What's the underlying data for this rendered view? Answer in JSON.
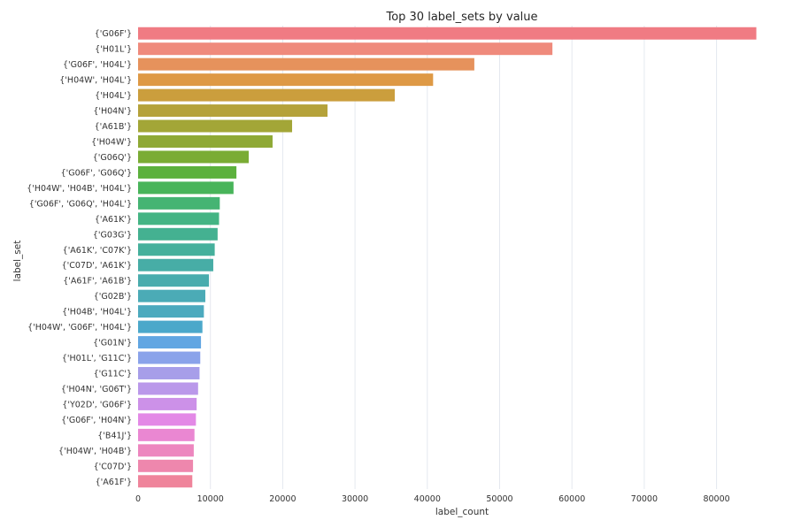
{
  "chart_data": {
    "type": "bar",
    "orientation": "horizontal",
    "title": "Top 30 label_sets by value",
    "xlabel": "label_count",
    "ylabel": "label_set",
    "xlim": [
      0,
      90000
    ],
    "xticks": [
      0,
      10000,
      20000,
      30000,
      40000,
      50000,
      60000,
      70000,
      80000
    ],
    "grid": "vertical",
    "categories": [
      "{'G06F'}",
      "{'H01L'}",
      "{'G06F', 'H04L'}",
      "{'H04W', 'H04L'}",
      "{'H04L'}",
      "{'H04N'}",
      "{'A61B'}",
      "{'H04W'}",
      "{'G06Q'}",
      "{'G06F', 'G06Q'}",
      "{'H04W', 'H04B', 'H04L'}",
      "{'G06F', 'G06Q', 'H04L'}",
      "{'A61K'}",
      "{'G03G'}",
      "{'A61K', 'C07K'}",
      "{'C07D', 'A61K'}",
      "{'A61F', 'A61B'}",
      "{'G02B'}",
      "{'H04B', 'H04L'}",
      "{'H04W', 'G06F', 'H04L'}",
      "{'G01N'}",
      "{'H01L', 'G11C'}",
      "{'G11C'}",
      "{'H04N', 'G06T'}",
      "{'Y02D', 'G06F'}",
      "{'G06F', 'H04N'}",
      "{'B41J'}",
      "{'H04W', 'H04B'}",
      "{'C07D'}",
      "{'A61F'}"
    ],
    "values": [
      85500,
      57300,
      46500,
      40800,
      35500,
      26200,
      21300,
      18600,
      15300,
      13600,
      13200,
      11300,
      11200,
      11000,
      10600,
      10400,
      9800,
      9300,
      9100,
      8900,
      8700,
      8600,
      8500,
      8300,
      8100,
      8000,
      7800,
      7700,
      7600,
      7500
    ],
    "colors": [
      "#f07b83",
      "#ef8a7c",
      "#e6925c",
      "#de9945",
      "#cb9e3d",
      "#b5a23a",
      "#a3a637",
      "#8fa935",
      "#7aac34",
      "#5cb13d",
      "#48b45a",
      "#45b473",
      "#44b484",
      "#44b191",
      "#45b09c",
      "#47ada6",
      "#49acad",
      "#4babb6",
      "#4caabe",
      "#4ba8ca",
      "#61a6e2",
      "#8aa3ea",
      "#a79ee9",
      "#ba98ea",
      "#cc91e8",
      "#e389e6",
      "#ea87d2",
      "#ed86bf",
      "#ee87ad",
      "#ef849b"
    ]
  }
}
